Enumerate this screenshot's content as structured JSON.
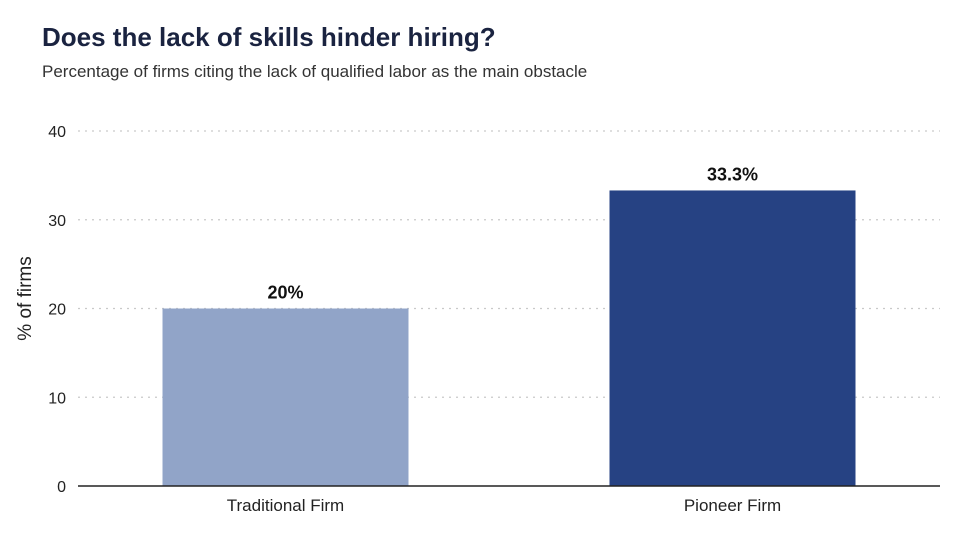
{
  "chart_data": {
    "type": "bar",
    "title": "Does the lack of skills hinder hiring?",
    "subtitle": "Percentage of firms citing the lack of qualified labor as the main obstacle",
    "xlabel": "",
    "ylabel": "% of firms",
    "categories": [
      "Traditional Firm",
      "Pioneer Firm"
    ],
    "values": [
      20,
      33.3
    ],
    "data_labels": [
      "20%",
      "33.3%"
    ],
    "colors": [
      "#91a4c8",
      "#264283"
    ],
    "ylim": [
      0,
      40
    ],
    "yticks": [
      0,
      10,
      20,
      30,
      40
    ],
    "grid": true,
    "grid_style": "dotted",
    "legend": "none"
  }
}
